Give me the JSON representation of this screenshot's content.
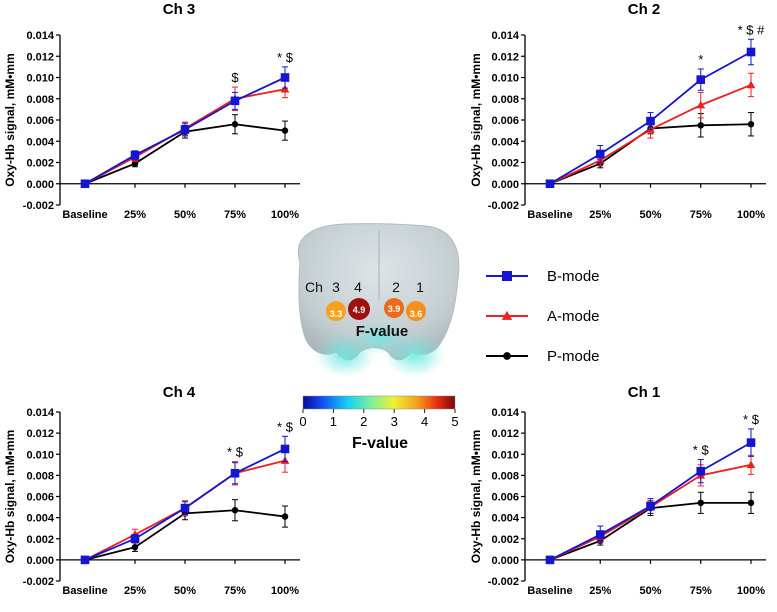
{
  "colors": {
    "b_mode": "#1515d0",
    "a_mode": "#ee2020",
    "p_mode": "#000000",
    "brain": "#c9d3d6"
  },
  "legend": [
    {
      "label": "B-mode",
      "color": "#1515d0",
      "marker": "square"
    },
    {
      "label": "A-mode",
      "color": "#ee2020",
      "marker": "triangle"
    },
    {
      "label": "P-mode",
      "color": "#000000",
      "marker": "circle"
    }
  ],
  "brain": {
    "ch_label": "Ch",
    "f_value_label": "F-value",
    "channels": [
      {
        "number": "3",
        "value": "3.3",
        "color": "#f6a21e"
      },
      {
        "number": "4",
        "value": "4.9",
        "color": "#a01010"
      },
      {
        "number": "2",
        "value": "3.9",
        "color": "#ef6a18"
      },
      {
        "number": "1",
        "value": "3.6",
        "color": "#f5901c"
      }
    ],
    "colorbar": {
      "ticks": [
        "0",
        "1",
        "2",
        "3",
        "4",
        "5"
      ],
      "label": "F-value",
      "range": [
        0,
        5
      ]
    }
  },
  "chart_data": [
    {
      "type": "line",
      "title": "Ch 3",
      "ylabel": "Oxy-Hb signal, mM•mm",
      "xlabel": "",
      "categories": [
        "Baseline",
        "25%",
        "50%",
        "75%",
        "100%"
      ],
      "ylim": [
        -0.002,
        0.014
      ],
      "yticks": [
        "-0.002",
        "0.000",
        "0.002",
        "0.004",
        "0.006",
        "0.008",
        "0.010",
        "0.012",
        "0.014"
      ],
      "series": [
        {
          "name": "B-mode",
          "values": [
            0.0,
            0.0027,
            0.0051,
            0.0078,
            0.01
          ],
          "errors": [
            0.0002,
            0.0004,
            0.0006,
            0.0008,
            0.001
          ]
        },
        {
          "name": "A-mode",
          "values": [
            0.0,
            0.0025,
            0.0052,
            0.008,
            0.0089
          ],
          "errors": [
            0.0002,
            0.0004,
            0.0006,
            0.0011,
            0.0008
          ]
        },
        {
          "name": "P-mode",
          "values": [
            0.0,
            0.0019,
            0.0049,
            0.0056,
            0.005
          ],
          "errors": [
            0.0002,
            0.0003,
            0.0006,
            0.0009,
            0.0009
          ]
        }
      ],
      "annotations": [
        {
          "category": "75%",
          "text": "$"
        },
        {
          "category": "100%",
          "text": "* $"
        }
      ]
    },
    {
      "type": "line",
      "title": "Ch 2",
      "ylabel": "Oxy-Hb signal, mM•mm",
      "xlabel": "",
      "categories": [
        "Baseline",
        "25%",
        "50%",
        "75%",
        "100%"
      ],
      "ylim": [
        -0.002,
        0.014
      ],
      "yticks": [
        "-0.002",
        "0.000",
        "0.002",
        "0.004",
        "0.006",
        "0.008",
        "0.010",
        "0.012",
        "0.014"
      ],
      "series": [
        {
          "name": "B-mode",
          "values": [
            0.0,
            0.0028,
            0.0059,
            0.0098,
            0.0124
          ],
          "errors": [
            0.0002,
            0.0008,
            0.0008,
            0.001,
            0.0012
          ]
        },
        {
          "name": "A-mode",
          "values": [
            0.0,
            0.0022,
            0.0051,
            0.0074,
            0.0093
          ],
          "errors": [
            0.0002,
            0.0005,
            0.0008,
            0.0012,
            0.0011
          ]
        },
        {
          "name": "P-mode",
          "values": [
            0.0,
            0.0019,
            0.0052,
            0.0055,
            0.0056
          ],
          "errors": [
            0.0002,
            0.0004,
            0.0005,
            0.0011,
            0.0011
          ]
        }
      ],
      "annotations": [
        {
          "category": "75%",
          "text": "*"
        },
        {
          "category": "100%",
          "text": "* $ #"
        }
      ]
    },
    {
      "type": "line",
      "title": "Ch 4",
      "ylabel": "Oxy-Hb signal, mM•mm",
      "xlabel": "",
      "categories": [
        "Baseline",
        "25%",
        "50%",
        "75%",
        "100%"
      ],
      "ylim": [
        -0.002,
        0.014
      ],
      "yticks": [
        "-0.002",
        "0.000",
        "0.002",
        "0.004",
        "0.006",
        "0.008",
        "0.010",
        "0.012",
        "0.014"
      ],
      "series": [
        {
          "name": "B-mode",
          "values": [
            0.0,
            0.002,
            0.0049,
            0.0082,
            0.0105
          ],
          "errors": [
            0.0002,
            0.0004,
            0.0006,
            0.001,
            0.0012
          ]
        },
        {
          "name": "A-mode",
          "values": [
            0.0,
            0.0024,
            0.0049,
            0.0082,
            0.0094
          ],
          "errors": [
            0.0002,
            0.0005,
            0.0007,
            0.0011,
            0.0011
          ]
        },
        {
          "name": "P-mode",
          "values": [
            0.0,
            0.0012,
            0.0044,
            0.0047,
            0.0041
          ],
          "errors": [
            0.0002,
            0.0004,
            0.0006,
            0.001,
            0.001
          ]
        }
      ],
      "annotations": [
        {
          "category": "75%",
          "text": "* $"
        },
        {
          "category": "100%",
          "text": "* $"
        }
      ]
    },
    {
      "type": "line",
      "title": "Ch 1",
      "ylabel": "Oxy-Hb signal, mM•mm",
      "xlabel": "",
      "categories": [
        "Baseline",
        "25%",
        "50%",
        "75%",
        "100%"
      ],
      "ylim": [
        -0.002,
        0.014
      ],
      "yticks": [
        "-0.002",
        "0.000",
        "0.002",
        "0.004",
        "0.006",
        "0.008",
        "0.010",
        "0.012",
        "0.014"
      ],
      "series": [
        {
          "name": "B-mode",
          "values": [
            0.0,
            0.0024,
            0.0051,
            0.0084,
            0.0111
          ],
          "errors": [
            0.0002,
            0.0008,
            0.0007,
            0.0011,
            0.0013
          ]
        },
        {
          "name": "A-mode",
          "values": [
            0.0,
            0.0022,
            0.005,
            0.008,
            0.009
          ],
          "errors": [
            0.0002,
            0.0005,
            0.0006,
            0.001,
            0.0009
          ]
        },
        {
          "name": "P-mode",
          "values": [
            0.0,
            0.0018,
            0.0049,
            0.0054,
            0.0054
          ],
          "errors": [
            0.0002,
            0.0004,
            0.0007,
            0.001,
            0.001
          ]
        }
      ],
      "annotations": [
        {
          "category": "75%",
          "text": "* $"
        },
        {
          "category": "100%",
          "text": "* $"
        }
      ]
    }
  ]
}
